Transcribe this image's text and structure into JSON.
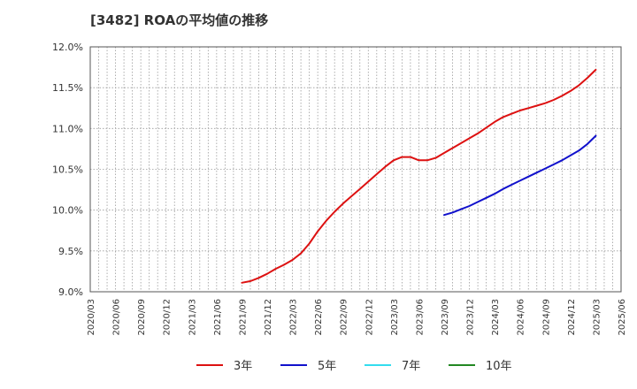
{
  "chart_data": {
    "type": "line",
    "title": "[3482]  ROAの平均値の推移",
    "ylim": [
      9.0,
      12.0
    ],
    "yticks": [
      "9.0%",
      "9.5%",
      "10.0%",
      "10.5%",
      "11.0%",
      "11.5%",
      "12.0%"
    ],
    "ytick_values": [
      9.0,
      9.5,
      10.0,
      10.5,
      11.0,
      11.5,
      12.0
    ],
    "xticks": [
      "2020/03",
      "2020/06",
      "2020/09",
      "2020/12",
      "2021/03",
      "2021/06",
      "2021/09",
      "2021/12",
      "2022/03",
      "2022/06",
      "2022/09",
      "2022/12",
      "2023/03",
      "2023/06",
      "2023/09",
      "2023/12",
      "2024/03",
      "2024/06",
      "2024/09",
      "2024/12",
      "2025/03",
      "2025/06"
    ],
    "grid": true,
    "legend_position": "bottom",
    "series": [
      {
        "name": "3年",
        "color": "#dd1111",
        "points": [
          [
            "2021/09",
            9.11
          ],
          [
            "2021/10",
            9.13
          ],
          [
            "2021/11",
            9.17
          ],
          [
            "2021/12",
            9.22
          ],
          [
            "2022/01",
            9.28
          ],
          [
            "2022/02",
            9.33
          ],
          [
            "2022/03",
            9.39
          ],
          [
            "2022/04",
            9.47
          ],
          [
            "2022/05",
            9.59
          ],
          [
            "2022/06",
            9.74
          ],
          [
            "2022/07",
            9.87
          ],
          [
            "2022/08",
            9.98
          ],
          [
            "2022/09",
            10.08
          ],
          [
            "2022/10",
            10.17
          ],
          [
            "2022/11",
            10.26
          ],
          [
            "2022/12",
            10.35
          ],
          [
            "2023/01",
            10.44
          ],
          [
            "2023/02",
            10.53
          ],
          [
            "2023/03",
            10.61
          ],
          [
            "2023/04",
            10.65
          ],
          [
            "2023/05",
            10.65
          ],
          [
            "2023/06",
            10.61
          ],
          [
            "2023/07",
            10.61
          ],
          [
            "2023/08",
            10.64
          ],
          [
            "2023/09",
            10.7
          ],
          [
            "2023/10",
            10.76
          ],
          [
            "2023/11",
            10.82
          ],
          [
            "2023/12",
            10.88
          ],
          [
            "2024/01",
            10.94
          ],
          [
            "2024/02",
            11.01
          ],
          [
            "2024/03",
            11.08
          ],
          [
            "2024/04",
            11.14
          ],
          [
            "2024/05",
            11.18
          ],
          [
            "2024/06",
            11.22
          ],
          [
            "2024/07",
            11.25
          ],
          [
            "2024/08",
            11.28
          ],
          [
            "2024/09",
            11.31
          ],
          [
            "2024/10",
            11.35
          ],
          [
            "2024/11",
            11.4
          ],
          [
            "2024/12",
            11.46
          ],
          [
            "2025/01",
            11.53
          ],
          [
            "2025/02",
            11.62
          ],
          [
            "2025/03",
            11.72
          ]
        ]
      },
      {
        "name": "5年",
        "color": "#1111cc",
        "points": [
          [
            "2023/09",
            9.94
          ],
          [
            "2023/10",
            9.97
          ],
          [
            "2023/11",
            10.01
          ],
          [
            "2023/12",
            10.05
          ],
          [
            "2024/01",
            10.1
          ],
          [
            "2024/02",
            10.15
          ],
          [
            "2024/03",
            10.2
          ],
          [
            "2024/04",
            10.26
          ],
          [
            "2024/05",
            10.31
          ],
          [
            "2024/06",
            10.36
          ],
          [
            "2024/07",
            10.41
          ],
          [
            "2024/08",
            10.46
          ],
          [
            "2024/09",
            10.51
          ],
          [
            "2024/10",
            10.56
          ],
          [
            "2024/11",
            10.61
          ],
          [
            "2024/12",
            10.67
          ],
          [
            "2025/01",
            10.73
          ],
          [
            "2025/02",
            10.81
          ],
          [
            "2025/03",
            10.91
          ]
        ]
      },
      {
        "name": "7年",
        "color": "#33ddee",
        "points": []
      },
      {
        "name": "10年",
        "color": "#228822",
        "points": []
      }
    ]
  }
}
